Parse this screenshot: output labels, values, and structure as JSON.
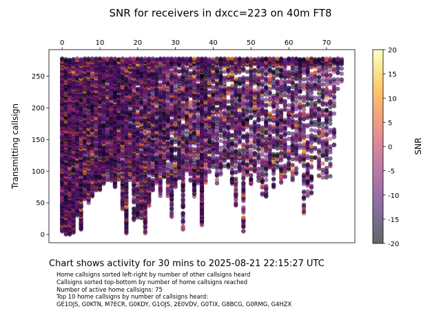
{
  "chart_data": {
    "type": "scatter",
    "title": "SNR for receivers in dxcc=223 on 40m FT8",
    "xlabel": "",
    "ylabel": "Transmitting callsign",
    "xlim": [
      -3.5,
      77.5
    ],
    "ylim": [
      -13,
      292
    ],
    "x_ticks": [
      0,
      10,
      20,
      30,
      40,
      50,
      60,
      70
    ],
    "y_ticks": [
      0,
      50,
      100,
      150,
      200,
      250
    ],
    "x_axis_position": "top",
    "grid": false,
    "colorbar": {
      "label": "SNR",
      "range": [
        -20,
        20
      ],
      "ticks": [
        -20,
        -15,
        -10,
        -5,
        0,
        5,
        10,
        15,
        20
      ],
      "colormap": "inferno",
      "marker_alpha": 0.6
    },
    "columns": [
      {
        "x": 0,
        "ymin": 5,
        "ymax": 278,
        "density": 0.8
      },
      {
        "x": 1,
        "ymin": 0,
        "ymax": 278,
        "density": 0.8
      },
      {
        "x": 2,
        "ymin": 0,
        "ymax": 278,
        "density": 0.8
      },
      {
        "x": 3,
        "ymin": 3,
        "ymax": 278,
        "density": 0.8
      },
      {
        "x": 4,
        "ymin": 30,
        "ymax": 278,
        "density": 0.75
      },
      {
        "x": 5,
        "ymin": 8,
        "ymax": 278,
        "density": 0.75
      },
      {
        "x": 6,
        "ymin": 55,
        "ymax": 278,
        "density": 0.7
      },
      {
        "x": 7,
        "ymin": 50,
        "ymax": 278,
        "density": 0.7
      },
      {
        "x": 8,
        "ymin": 60,
        "ymax": 278,
        "density": 0.7
      },
      {
        "x": 9,
        "ymin": 70,
        "ymax": 278,
        "density": 0.7
      },
      {
        "x": 10,
        "ymin": 70,
        "ymax": 278,
        "density": 0.95
      },
      {
        "x": 11,
        "ymin": 80,
        "ymax": 278,
        "density": 0.7
      },
      {
        "x": 12,
        "ymin": 85,
        "ymax": 278,
        "density": 0.7
      },
      {
        "x": 13,
        "ymin": 85,
        "ymax": 278,
        "density": 0.7
      },
      {
        "x": 14,
        "ymin": 75,
        "ymax": 278,
        "density": 0.95
      },
      {
        "x": 15,
        "ymin": 85,
        "ymax": 278,
        "density": 0.65
      },
      {
        "x": 16,
        "ymin": 40,
        "ymax": 278,
        "density": 0.65
      },
      {
        "x": 17,
        "ymin": 0,
        "ymax": 278,
        "density": 0.65
      },
      {
        "x": 18,
        "ymin": 85,
        "ymax": 278,
        "density": 0.65
      },
      {
        "x": 19,
        "ymin": 22,
        "ymax": 278,
        "density": 0.6
      },
      {
        "x": 20,
        "ymin": 27,
        "ymax": 278,
        "density": 0.6
      },
      {
        "x": 21,
        "ymin": 25,
        "ymax": 278,
        "density": 0.6
      },
      {
        "x": 22,
        "ymin": 2,
        "ymax": 278,
        "density": 0.6
      },
      {
        "x": 23,
        "ymin": 45,
        "ymax": 278,
        "density": 0.6
      },
      {
        "x": 24,
        "ymin": 70,
        "ymax": 278,
        "density": 0.55
      },
      {
        "x": 25,
        "ymin": 80,
        "ymax": 278,
        "density": 0.55
      },
      {
        "x": 26,
        "ymin": 60,
        "ymax": 278,
        "density": 0.55
      },
      {
        "x": 27,
        "ymin": 90,
        "ymax": 278,
        "density": 0.55
      },
      {
        "x": 28,
        "ymin": 60,
        "ymax": 278,
        "density": 0.5
      },
      {
        "x": 29,
        "ymin": 28,
        "ymax": 278,
        "density": 0.5
      },
      {
        "x": 30,
        "ymin": 75,
        "ymax": 278,
        "density": 0.5
      },
      {
        "x": 31,
        "ymin": 85,
        "ymax": 278,
        "density": 0.5
      },
      {
        "x": 32,
        "ymin": 8,
        "ymax": 278,
        "density": 0.5
      },
      {
        "x": 33,
        "ymin": 100,
        "ymax": 278,
        "density": 0.45
      },
      {
        "x": 34,
        "ymin": 85,
        "ymax": 278,
        "density": 0.45
      },
      {
        "x": 35,
        "ymin": 60,
        "ymax": 278,
        "density": 0.45
      },
      {
        "x": 36,
        "ymin": 80,
        "ymax": 278,
        "density": 0.45
      },
      {
        "x": 37,
        "ymin": 15,
        "ymax": 278,
        "density": 0.85
      },
      {
        "x": 38,
        "ymin": 80,
        "ymax": 278,
        "density": 0.45
      },
      {
        "x": 39,
        "ymin": 95,
        "ymax": 278,
        "density": 0.45
      },
      {
        "x": 40,
        "ymin": 105,
        "ymax": 278,
        "density": 0.45
      },
      {
        "x": 41,
        "ymin": 80,
        "ymax": 278,
        "density": 0.4
      },
      {
        "x": 42,
        "ymin": 95,
        "ymax": 278,
        "density": 0.4
      },
      {
        "x": 43,
        "ymin": 105,
        "ymax": 278,
        "density": 0.4
      },
      {
        "x": 44,
        "ymin": 105,
        "ymax": 278,
        "density": 0.4
      },
      {
        "x": 45,
        "ymin": 80,
        "ymax": 278,
        "density": 0.4
      },
      {
        "x": 46,
        "ymin": 45,
        "ymax": 278,
        "density": 0.4
      },
      {
        "x": 47,
        "ymin": 100,
        "ymax": 278,
        "density": 0.4
      },
      {
        "x": 48,
        "ymin": 5,
        "ymax": 278,
        "density": 0.35
      },
      {
        "x": 49,
        "ymin": 90,
        "ymax": 278,
        "density": 0.35
      },
      {
        "x": 50,
        "ymin": 80,
        "ymax": 278,
        "density": 0.35
      },
      {
        "x": 51,
        "ymin": 100,
        "ymax": 278,
        "density": 0.35
      },
      {
        "x": 52,
        "ymin": 85,
        "ymax": 278,
        "density": 0.35
      },
      {
        "x": 53,
        "ymin": 60,
        "ymax": 278,
        "density": 0.35
      },
      {
        "x": 54,
        "ymin": 60,
        "ymax": 278,
        "density": 0.35
      },
      {
        "x": 55,
        "ymin": 100,
        "ymax": 278,
        "density": 0.35
      },
      {
        "x": 56,
        "ymin": 75,
        "ymax": 278,
        "density": 0.35
      },
      {
        "x": 57,
        "ymin": 100,
        "ymax": 278,
        "density": 0.35
      },
      {
        "x": 58,
        "ymin": 80,
        "ymax": 278,
        "density": 0.35
      },
      {
        "x": 59,
        "ymin": 90,
        "ymax": 278,
        "density": 0.3
      },
      {
        "x": 60,
        "ymin": 95,
        "ymax": 278,
        "density": 0.3
      },
      {
        "x": 61,
        "ymin": 85,
        "ymax": 278,
        "density": 0.3
      },
      {
        "x": 62,
        "ymin": 90,
        "ymax": 278,
        "density": 0.3
      },
      {
        "x": 63,
        "ymin": 115,
        "ymax": 278,
        "density": 0.3
      },
      {
        "x": 64,
        "ymin": 30,
        "ymax": 278,
        "density": 0.3
      },
      {
        "x": 65,
        "ymin": 60,
        "ymax": 278,
        "density": 0.3
      },
      {
        "x": 66,
        "ymin": 65,
        "ymax": 278,
        "density": 0.3
      },
      {
        "x": 67,
        "ymin": 120,
        "ymax": 278,
        "density": 0.25
      },
      {
        "x": 68,
        "ymin": 90,
        "ymax": 278,
        "density": 0.25
      },
      {
        "x": 69,
        "ymin": 90,
        "ymax": 278,
        "density": 0.25
      },
      {
        "x": 70,
        "ymin": 90,
        "ymax": 278,
        "density": 0.25
      },
      {
        "x": 71,
        "ymin": 80,
        "ymax": 278,
        "density": 0.2
      },
      {
        "x": 72,
        "ymin": 140,
        "ymax": 278,
        "density": 0.2
      },
      {
        "x": 73,
        "ymin": 230,
        "ymax": 278,
        "density": 0.15
      },
      {
        "x": 74,
        "ymin": 240,
        "ymax": 278,
        "density": 0.15
      }
    ]
  },
  "caption": "Chart shows activity for 30 mins to 2025-08-21 22:15:27 UTC",
  "notes": [
    "Home callsigns sorted left-right by number of other callsigns heard",
    "Callsigns sorted top-bottom by number of home callsigns reached",
    "Number of active home callsigns: 75",
    "Top 10 home callsigns by number of callsigns heard:",
    "GE1OJS, G0KTN, M7ECR, G0KDY, G1OJS, 2E0VDV, G0TIX, G8BCG, G0RMG, G4HZX"
  ]
}
